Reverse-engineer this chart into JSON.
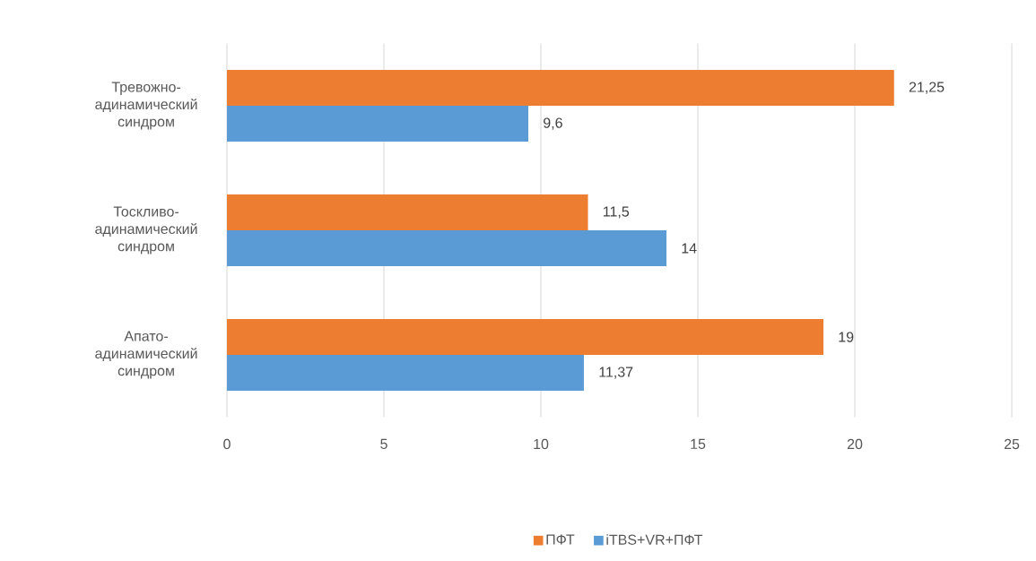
{
  "chart_data": {
    "type": "bar",
    "orientation": "horizontal",
    "categories": [
      "Тревожно-адинамический синдром",
      "Тоскливо-адинамический синдром",
      "Апато-адинамический синдром"
    ],
    "series": [
      {
        "name": "ПФТ",
        "color": "#ed7d31",
        "values": [
          21.25,
          11.5,
          19
        ],
        "value_labels": [
          "21,25",
          "11,5",
          "19"
        ]
      },
      {
        "name": "iTBS+VR+ПФТ",
        "color": "#5b9bd5",
        "values": [
          9.6,
          14,
          11.37
        ],
        "value_labels": [
          "9,6",
          "14",
          "11,37"
        ]
      }
    ],
    "xlim": [
      0,
      25
    ],
    "xticks": [
      0,
      5,
      10,
      15,
      20,
      25
    ],
    "grid": "x",
    "legend": "bottom"
  }
}
